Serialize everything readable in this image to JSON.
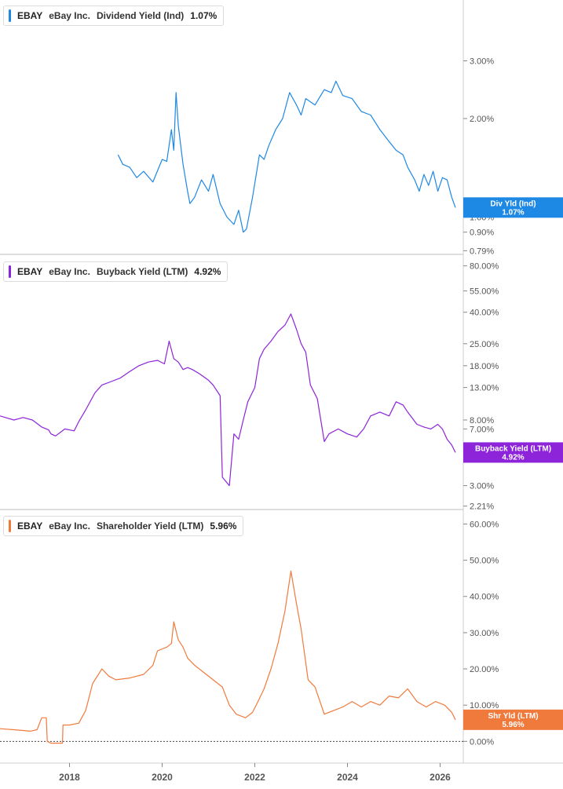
{
  "chart_data": [
    {
      "type": "line",
      "ticker": "EBAY",
      "company": "eBay Inc.",
      "metric": "Dividend Yield (Ind)",
      "current_value": "1.07%",
      "badge_label": "Div Yld (Ind)",
      "color": "#1e88e5",
      "y_scale": "log",
      "ylim": [
        0.77,
        4.6
      ],
      "y_ticks": [
        {
          "value": 0.79,
          "label": "0.79%"
        },
        {
          "value": 0.9,
          "label": "0.90%"
        },
        {
          "value": 1.0,
          "label": "1.00%"
        },
        {
          "value": 2.0,
          "label": "2.00%"
        },
        {
          "value": 3.0,
          "label": "3.00%"
        }
      ],
      "x": [
        2019.05,
        2019.15,
        2019.3,
        2019.45,
        2019.6,
        2019.8,
        2020.0,
        2020.1,
        2020.2,
        2020.25,
        2020.3,
        2020.35,
        2020.45,
        2020.55,
        2020.6,
        2020.7,
        2020.85,
        2021.0,
        2021.1,
        2021.25,
        2021.4,
        2021.55,
        2021.65,
        2021.75,
        2021.82,
        2021.95,
        2022.1,
        2022.2,
        2022.3,
        2022.45,
        2022.6,
        2022.75,
        2022.9,
        2023.0,
        2023.1,
        2023.3,
        2023.5,
        2023.65,
        2023.75,
        2023.9,
        2024.1,
        2024.3,
        2024.5,
        2024.7,
        2024.9,
        2025.05,
        2025.2,
        2025.3,
        2025.45,
        2025.55,
        2025.65,
        2025.75,
        2025.85,
        2025.95,
        2026.05,
        2026.15,
        2026.25,
        2026.33
      ],
      "y": [
        1.55,
        1.45,
        1.42,
        1.32,
        1.38,
        1.28,
        1.5,
        1.48,
        1.85,
        1.6,
        2.4,
        1.9,
        1.45,
        1.2,
        1.1,
        1.15,
        1.3,
        1.2,
        1.35,
        1.1,
        1.0,
        0.95,
        1.05,
        0.9,
        0.92,
        1.15,
        1.55,
        1.5,
        1.65,
        1.85,
        2.0,
        2.4,
        2.2,
        2.05,
        2.3,
        2.2,
        2.45,
        2.4,
        2.6,
        2.35,
        2.3,
        2.1,
        2.05,
        1.85,
        1.7,
        1.6,
        1.55,
        1.42,
        1.3,
        1.2,
        1.35,
        1.25,
        1.38,
        1.2,
        1.32,
        1.3,
        1.15,
        1.07
      ]
    },
    {
      "type": "line",
      "ticker": "EBAY",
      "company": "eBay Inc.",
      "metric": "Buyback Yield (LTM)",
      "current_value": "4.92%",
      "badge_label": "Buyback Yield (LTM)",
      "color": "#8e24d9",
      "y_scale": "log",
      "ylim": [
        2.1,
        95
      ],
      "y_ticks": [
        {
          "value": 2.21,
          "label": "2.21%"
        },
        {
          "value": 3.0,
          "label": "3.00%"
        },
        {
          "value": 7.0,
          "label": "7.00%"
        },
        {
          "value": 8.0,
          "label": "8.00%"
        },
        {
          "value": 13.0,
          "label": "13.00%"
        },
        {
          "value": 18.0,
          "label": "18.00%"
        },
        {
          "value": 25.0,
          "label": "25.00%"
        },
        {
          "value": 40.0,
          "label": "40.00%"
        },
        {
          "value": 55.0,
          "label": "55.00%"
        },
        {
          "value": 80.0,
          "label": "80.00%"
        }
      ],
      "x": [
        2016.5,
        2016.8,
        2017.0,
        2017.2,
        2017.4,
        2017.55,
        2017.6,
        2017.7,
        2017.9,
        2018.1,
        2018.2,
        2018.35,
        2018.55,
        2018.7,
        2018.9,
        2019.1,
        2019.3,
        2019.5,
        2019.7,
        2019.9,
        2020.05,
        2020.15,
        2020.25,
        2020.35,
        2020.45,
        2020.55,
        2020.65,
        2020.8,
        2021.0,
        2021.1,
        2021.25,
        2021.3,
        2021.45,
        2021.55,
        2021.65,
        2021.75,
        2021.85,
        2022.0,
        2022.1,
        2022.2,
        2022.35,
        2022.5,
        2022.65,
        2022.78,
        2022.9,
        2023.0,
        2023.1,
        2023.2,
        2023.35,
        2023.5,
        2023.6,
        2023.8,
        2024.0,
        2024.2,
        2024.35,
        2024.5,
        2024.7,
        2024.9,
        2025.05,
        2025.2,
        2025.3,
        2025.5,
        2025.65,
        2025.8,
        2025.95,
        2026.05,
        2026.15,
        2026.25,
        2026.33
      ],
      "y": [
        8.5,
        8.0,
        8.3,
        8.0,
        7.2,
        6.9,
        6.5,
        6.3,
        7.0,
        6.8,
        7.8,
        9.3,
        12.0,
        13.5,
        14.2,
        15.0,
        16.5,
        18.0,
        19.0,
        19.5,
        18.5,
        26.0,
        20.0,
        19.0,
        17.0,
        17.5,
        17.0,
        16.0,
        14.5,
        13.5,
        11.5,
        3.4,
        3.0,
        6.5,
        6.0,
        8.0,
        10.5,
        13.0,
        20.0,
        23.0,
        26.0,
        30.0,
        33.0,
        39.0,
        31.0,
        25.0,
        22.0,
        13.5,
        11.0,
        5.8,
        6.5,
        7.0,
        6.5,
        6.2,
        7.0,
        8.5,
        9.0,
        8.5,
        10.5,
        10.0,
        9.0,
        7.5,
        7.2,
        7.0,
        7.5,
        7.0,
        6.0,
        5.5,
        4.92
      ]
    },
    {
      "type": "line",
      "ticker": "EBAY",
      "company": "eBay Inc.",
      "metric": "Shareholder Yield (LTM)",
      "current_value": "5.96%",
      "badge_label": "Shr Yld (LTM)",
      "color": "#f07a3c",
      "y_scale": "linear",
      "ylim": [
        -6,
        64
      ],
      "zero_line": true,
      "y_ticks": [
        {
          "value": 0,
          "label": "0.00%"
        },
        {
          "value": 10,
          "label": "10.00%"
        },
        {
          "value": 20,
          "label": "20.00%"
        },
        {
          "value": 30,
          "label": "30.00%"
        },
        {
          "value": 40,
          "label": "40.00%"
        },
        {
          "value": 50,
          "label": "50.00%"
        },
        {
          "value": 60,
          "label": "60.00%"
        }
      ],
      "x": [
        2016.5,
        2016.8,
        2017.0,
        2017.15,
        2017.3,
        2017.4,
        2017.5,
        2017.52,
        2017.6,
        2017.7,
        2017.85,
        2017.86,
        2018.0,
        2018.2,
        2018.35,
        2018.5,
        2018.7,
        2018.85,
        2019.0,
        2019.3,
        2019.6,
        2019.8,
        2019.9,
        2020.1,
        2020.2,
        2020.25,
        2020.35,
        2020.45,
        2020.55,
        2020.7,
        2020.9,
        2021.1,
        2021.3,
        2021.45,
        2021.6,
        2021.8,
        2021.95,
        2022.05,
        2022.2,
        2022.35,
        2022.5,
        2022.65,
        2022.78,
        2022.9,
        2023.0,
        2023.15,
        2023.3,
        2023.5,
        2023.7,
        2023.9,
        2024.1,
        2024.3,
        2024.5,
        2024.7,
        2024.9,
        2025.1,
        2025.3,
        2025.5,
        2025.7,
        2025.9,
        2026.1,
        2026.25,
        2026.33
      ],
      "y": [
        3.5,
        3.2,
        3.0,
        2.8,
        3.2,
        6.5,
        6.5,
        0.0,
        -0.5,
        -0.5,
        -0.5,
        4.5,
        4.5,
        5.0,
        8.5,
        16.0,
        20.0,
        18.0,
        17.0,
        17.5,
        18.5,
        21.0,
        25.0,
        26.0,
        27.0,
        33.0,
        28.0,
        26.0,
        23.0,
        21.0,
        19.0,
        17.0,
        15.0,
        10.0,
        7.5,
        6.5,
        8.0,
        10.5,
        14.5,
        20.0,
        27.0,
        36.0,
        47.0,
        38.0,
        31.0,
        17.0,
        15.0,
        7.5,
        8.5,
        9.5,
        11.0,
        9.5,
        11.0,
        10.0,
        12.5,
        12.0,
        14.5,
        11.0,
        9.5,
        11.0,
        10.0,
        8.0,
        5.96
      ]
    }
  ],
  "x_axis": {
    "range": [
      2016.5,
      2026.5
    ],
    "ticks": [
      {
        "value": 2018,
        "label": "2018"
      },
      {
        "value": 2020,
        "label": "2020"
      },
      {
        "value": 2022,
        "label": "2022"
      },
      {
        "value": 2024,
        "label": "2024"
      },
      {
        "value": 2026,
        "label": "2026"
      }
    ]
  }
}
